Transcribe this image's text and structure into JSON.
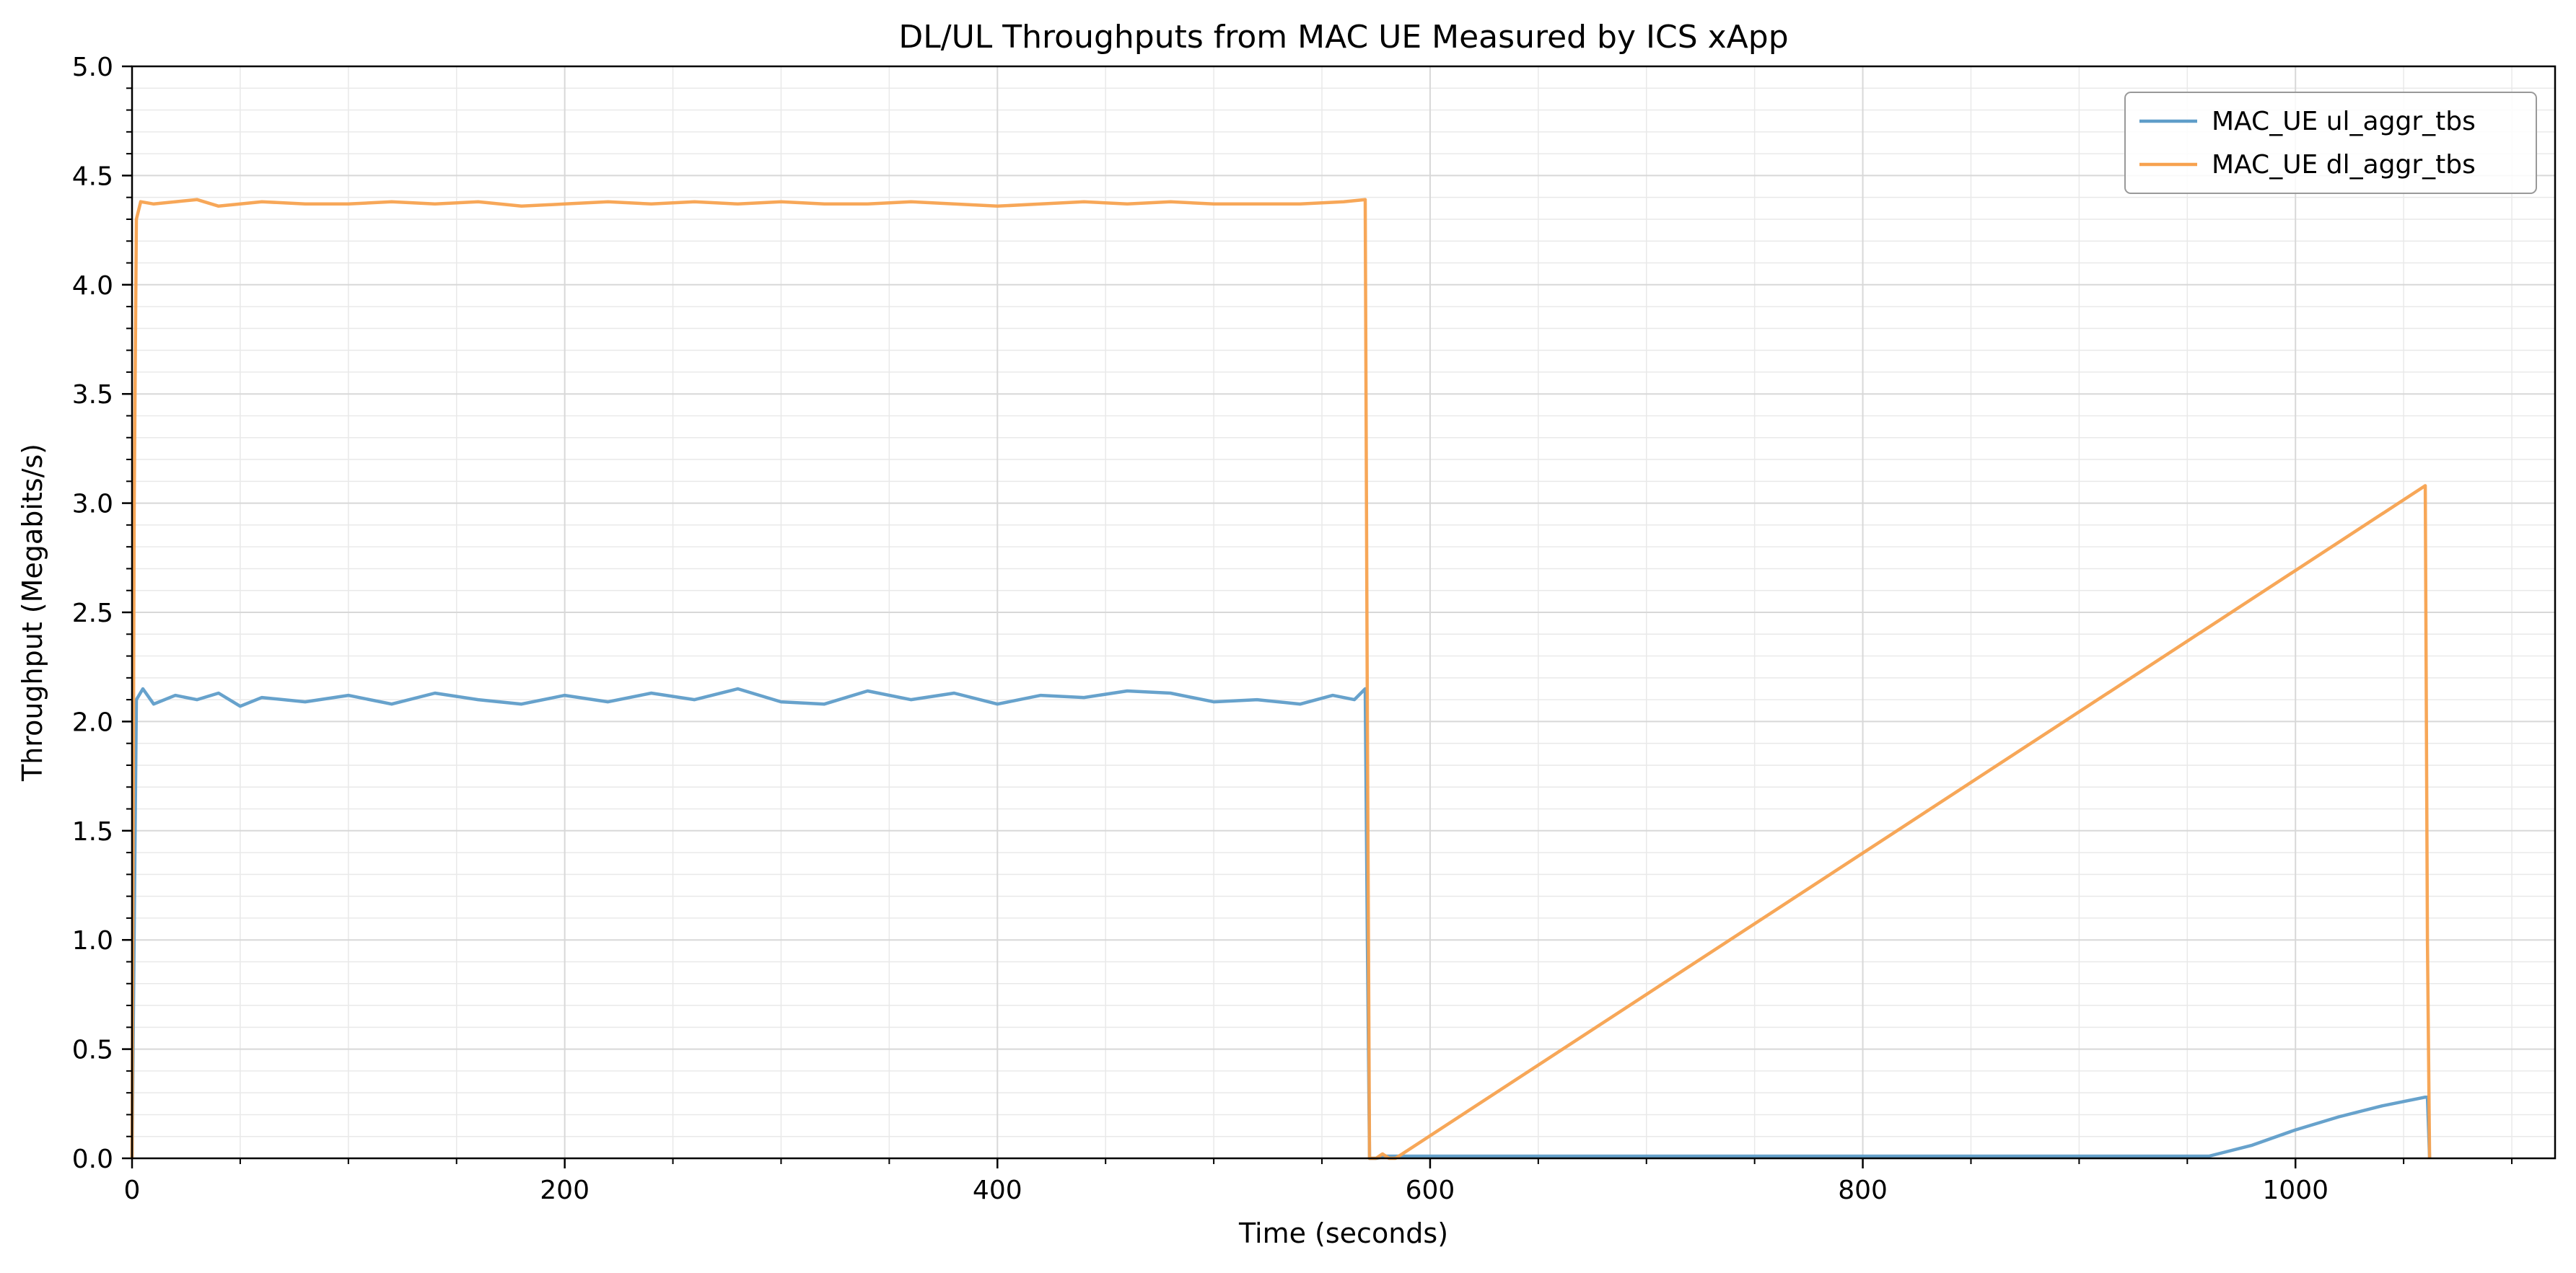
{
  "chart_data": {
    "type": "line",
    "title": "DL/UL Throughputs from MAC UE Measured by ICS xApp",
    "xlabel": "Time (seconds)",
    "ylabel": "Throughput (Megabits/s)",
    "xlim": [
      0,
      1120
    ],
    "ylim": [
      0,
      5.0
    ],
    "xticks": [
      0,
      200,
      400,
      600,
      800,
      1000
    ],
    "xtick_labels": [
      "0",
      "200",
      "400",
      "600",
      "800",
      "1000"
    ],
    "yticks": [
      0,
      0.5,
      1.0,
      1.5,
      2.0,
      2.5,
      3.0,
      3.5,
      4.0,
      4.5,
      5.0
    ],
    "ytick_labels": [
      "0.0",
      "0.5",
      "1.0",
      "1.5",
      "2.0",
      "2.5",
      "3.0",
      "3.5",
      "4.0",
      "4.5",
      "5.0"
    ],
    "grid": true,
    "minor_grid": true,
    "legend_position": "top-right",
    "series": [
      {
        "name": "MAC_UE ul_aggr_tbs",
        "color": "#5f9dc9",
        "x": [
          0,
          2,
          5,
          10,
          20,
          30,
          40,
          50,
          60,
          80,
          100,
          120,
          140,
          160,
          180,
          200,
          220,
          240,
          260,
          280,
          300,
          320,
          340,
          360,
          380,
          400,
          420,
          440,
          460,
          480,
          500,
          520,
          540,
          555,
          565,
          570,
          571,
          572,
          575,
          580,
          600,
          700,
          800,
          900,
          950,
          960,
          980,
          1000,
          1020,
          1040,
          1060,
          1061,
          1062
        ],
        "y": [
          0,
          2.1,
          2.15,
          2.08,
          2.12,
          2.1,
          2.13,
          2.07,
          2.11,
          2.09,
          2.12,
          2.08,
          2.13,
          2.1,
          2.08,
          2.12,
          2.09,
          2.13,
          2.1,
          2.15,
          2.09,
          2.08,
          2.14,
          2.1,
          2.13,
          2.08,
          2.12,
          2.11,
          2.14,
          2.13,
          2.09,
          2.1,
          2.08,
          2.12,
          2.1,
          2.15,
          1.0,
          0.0,
          0.0,
          0.01,
          0.01,
          0.01,
          0.01,
          0.01,
          0.01,
          0.01,
          0.06,
          0.13,
          0.19,
          0.24,
          0.28,
          0.28,
          0.0
        ]
      },
      {
        "name": "MAC_UE dl_aggr_tbs",
        "color": "#f7a24f",
        "x": [
          0,
          1,
          2,
          4,
          10,
          20,
          30,
          40,
          60,
          80,
          100,
          120,
          140,
          160,
          180,
          200,
          220,
          240,
          260,
          280,
          300,
          320,
          340,
          360,
          380,
          400,
          420,
          440,
          460,
          480,
          500,
          520,
          540,
          560,
          570,
          571,
          572,
          575,
          578,
          581,
          584,
          1060,
          1061,
          1062
        ],
        "y": [
          0,
          3.0,
          4.3,
          4.38,
          4.37,
          4.38,
          4.39,
          4.36,
          4.38,
          4.37,
          4.37,
          4.38,
          4.37,
          4.38,
          4.36,
          4.37,
          4.38,
          4.37,
          4.38,
          4.37,
          4.38,
          4.37,
          4.37,
          4.38,
          4.37,
          4.36,
          4.37,
          4.38,
          4.37,
          4.38,
          4.37,
          4.37,
          4.37,
          4.38,
          4.39,
          2.0,
          0.0,
          0.0,
          0.02,
          0.0,
          0.0,
          3.08,
          1.0,
          0.0
        ]
      }
    ]
  }
}
